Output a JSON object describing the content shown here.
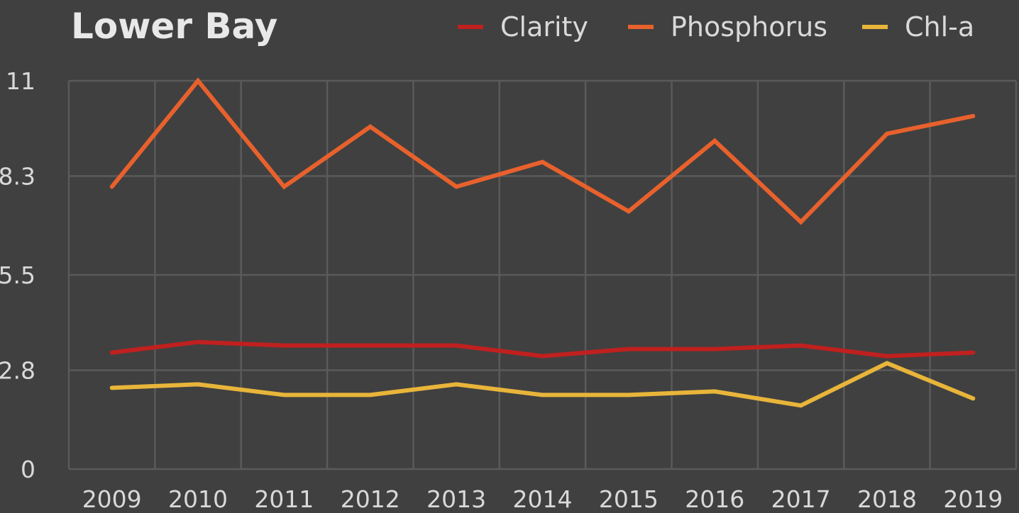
{
  "chart_data": {
    "type": "line",
    "title": "Lower Bay",
    "categories": [
      "2009",
      "2010",
      "2011",
      "2012",
      "2013",
      "2014",
      "2015",
      "2016",
      "2017",
      "2018",
      "2019"
    ],
    "y_tick_labels": [
      "0",
      "2.8",
      "5.5",
      "8.3",
      "11"
    ],
    "ylim": [
      0,
      11
    ],
    "grid": true,
    "legend_position": "top-right",
    "series": [
      {
        "name": "Clarity",
        "color": "#c0201f",
        "values": [
          3.3,
          3.6,
          3.5,
          3.5,
          3.5,
          3.2,
          3.4,
          3.4,
          3.5,
          3.2,
          3.3
        ]
      },
      {
        "name": "Phosphorus",
        "color": "#e8612c",
        "values": [
          8.0,
          11.0,
          8.0,
          9.7,
          8.0,
          8.7,
          7.3,
          9.3,
          7.0,
          9.5,
          10.0
        ]
      },
      {
        "name": "Chl-a",
        "color": "#e8b53a",
        "values": [
          2.3,
          2.4,
          2.1,
          2.1,
          2.4,
          2.1,
          2.1,
          2.2,
          1.8,
          3.0,
          2.0
        ]
      }
    ]
  }
}
